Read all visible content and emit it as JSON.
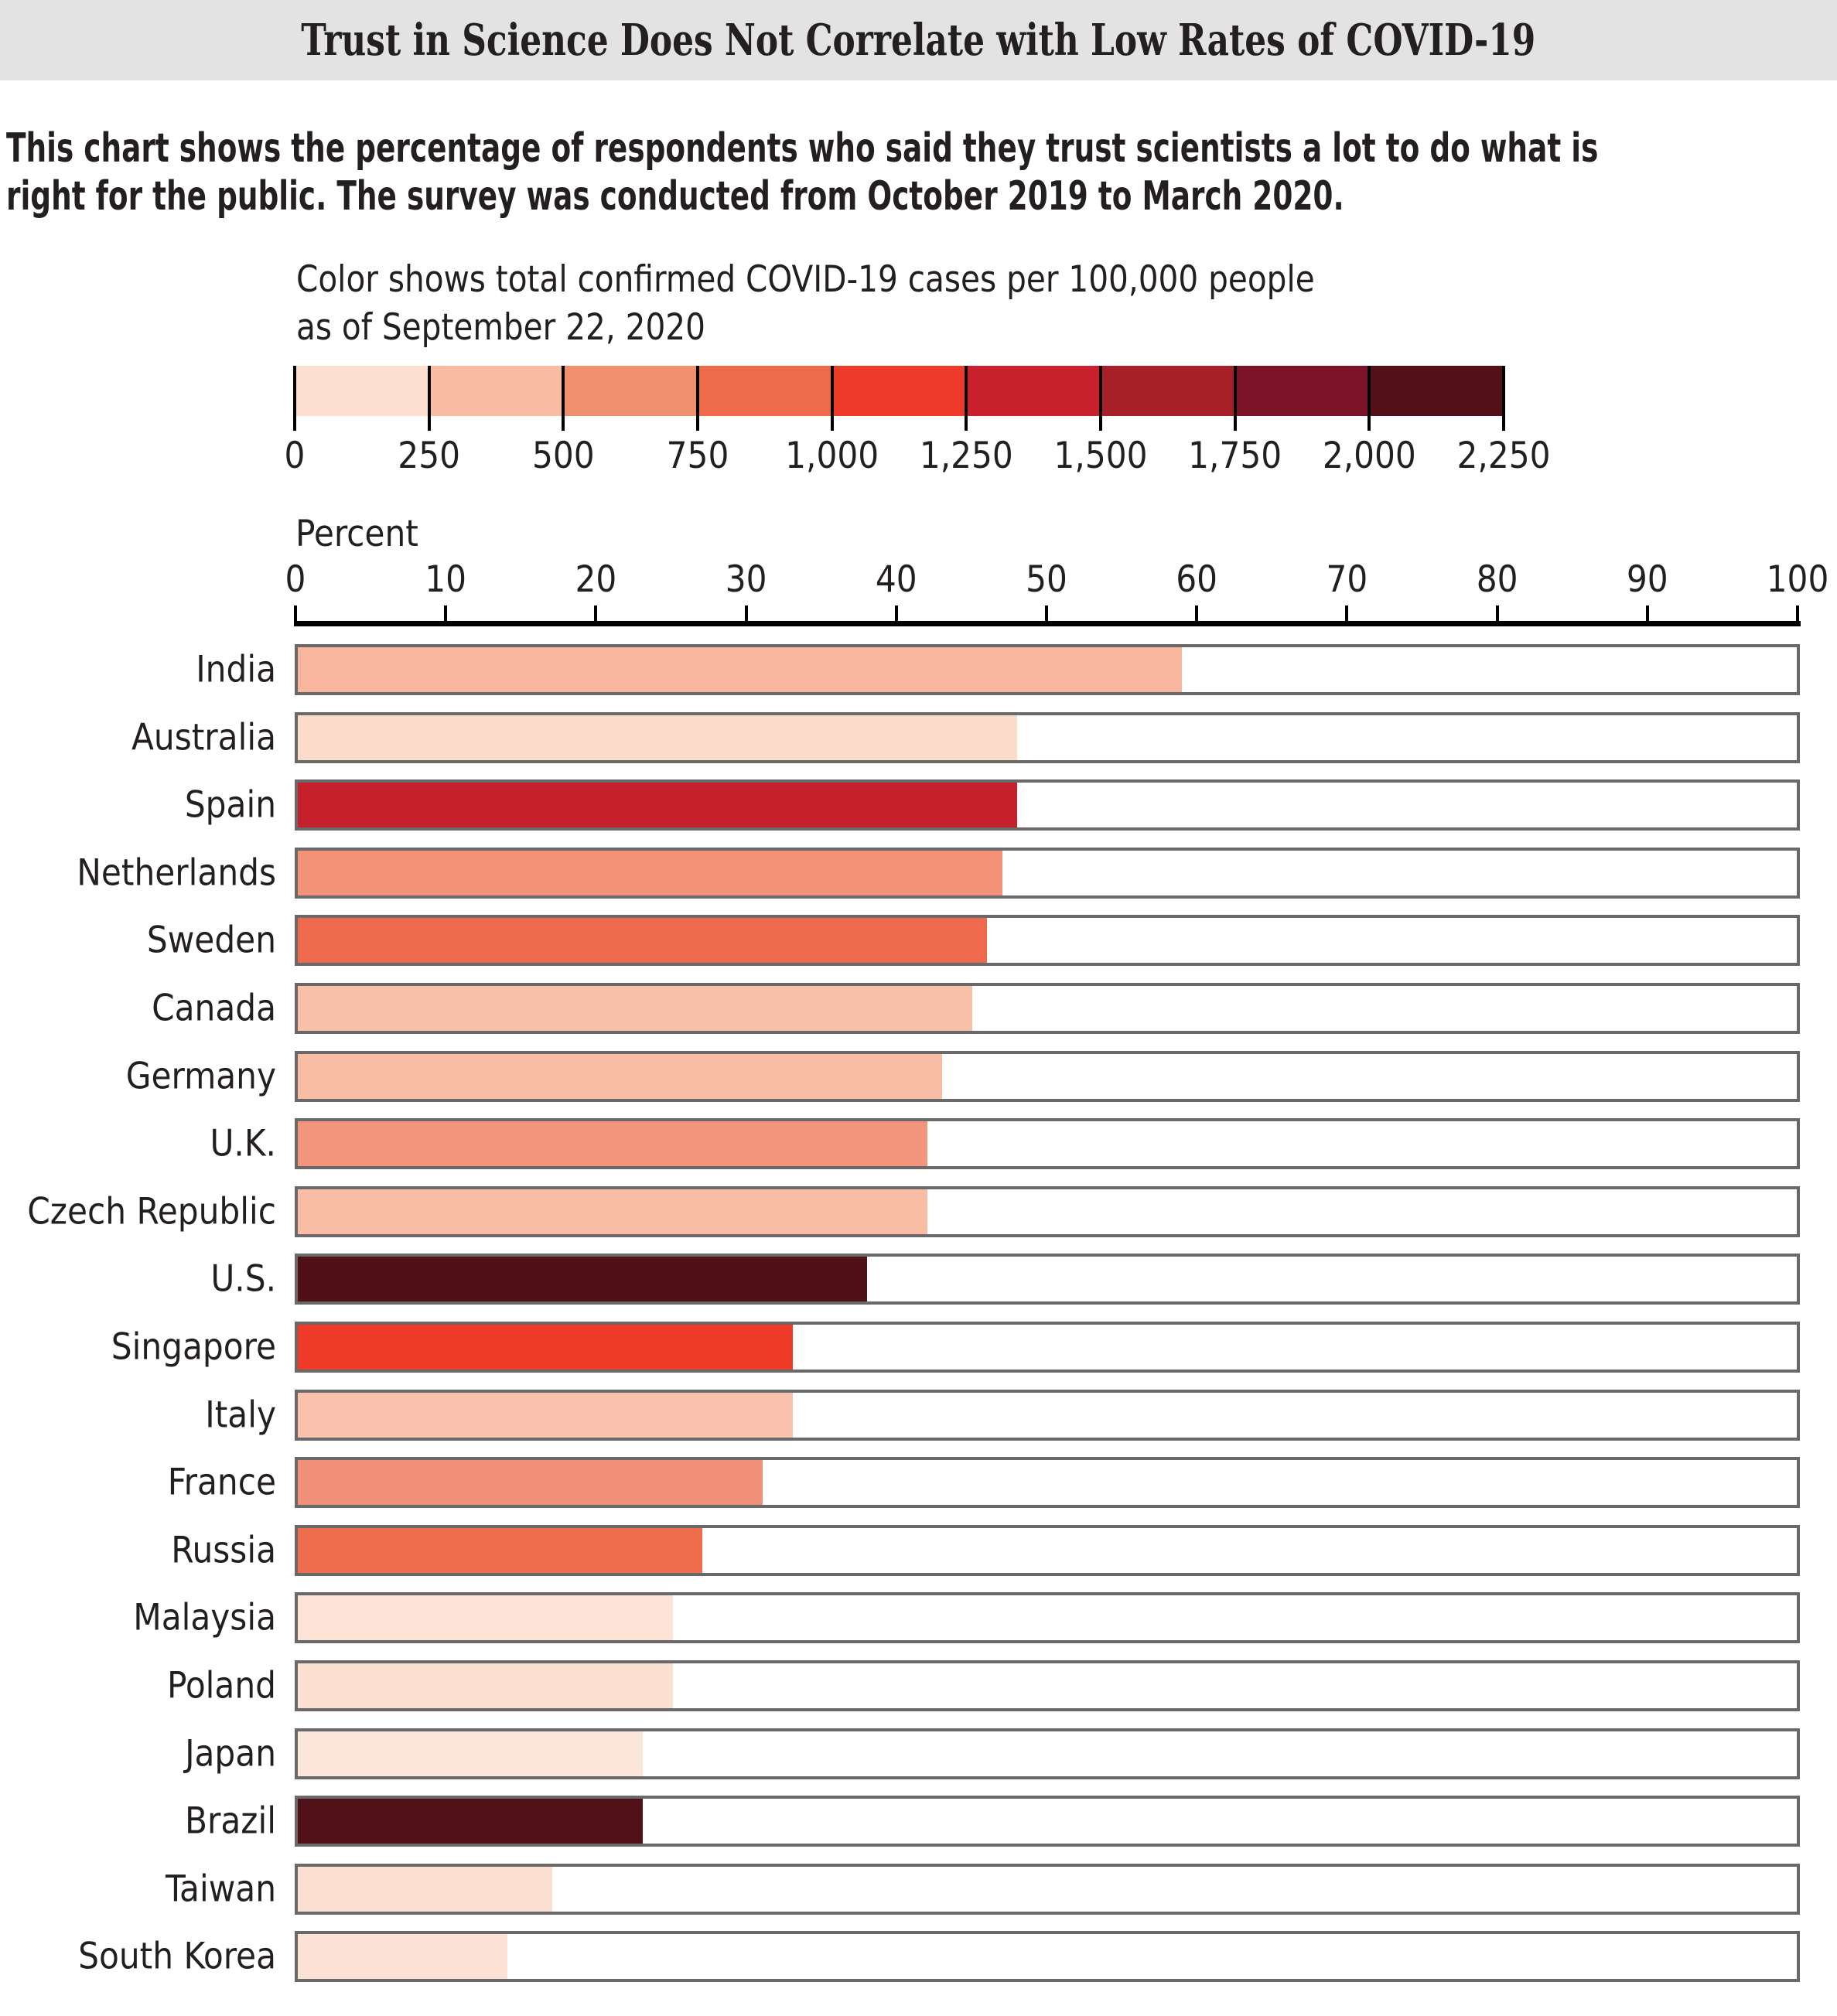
{
  "title": "Trust in Science Does Not Correlate with Low Rates of COVID-19",
  "subtitle_lines": [
    "This chart shows the percentage of respondents who said they trust scientists a lot to do what is",
    "right for the public. The survey was conducted from October 2019 to March 2020."
  ],
  "chart_data": {
    "type": "bar",
    "title": "Trust in Science Does Not Correlate with Low Rates of COVID-19",
    "xlabel": "Percent",
    "xlim": [
      0,
      100
    ],
    "x_ticks": [
      0,
      10,
      20,
      30,
      40,
      50,
      60,
      70,
      80,
      90,
      100
    ],
    "categories": [
      "India",
      "Australia",
      "Spain",
      "Netherlands",
      "Sweden",
      "Canada",
      "Germany",
      "U.K.",
      "Czech Republic",
      "U.S.",
      "Singapore",
      "Italy",
      "France",
      "Russia",
      "Malaysia",
      "Poland",
      "Japan",
      "Brazil",
      "Taiwan",
      "South Korea"
    ],
    "values": [
      59,
      48,
      48,
      47,
      46,
      45,
      43,
      42,
      42,
      38,
      33,
      33,
      31,
      27,
      25,
      25,
      23,
      23,
      17,
      14
    ],
    "bar_colors": [
      "#f7b69d",
      "#fbdbca",
      "#c6202c",
      "#f29279",
      "#ef6a4c",
      "#f9c0a9",
      "#f9bda5",
      "#f3947c",
      "#f9bda6",
      "#4f1018",
      "#ee3b28",
      "#f9c2ac",
      "#f2917a",
      "#ef6c4d",
      "#fce3d5",
      "#fce0d2",
      "#fce5d9",
      "#511119",
      "#fbdfd1",
      "#fce2d4"
    ],
    "colorbar": {
      "title_lines": [
        "Color shows total confirmed COVID-19 cases per 100,000 people",
        "as of September 22, 2020"
      ],
      "tick_labels": [
        "0",
        "250",
        "500",
        "750",
        "1,000",
        "1,250",
        "1,500",
        "1,750",
        "2,000",
        "2,250"
      ],
      "segment_colors": [
        "#fcdfd0",
        "#f9bba1",
        "#f1906e",
        "#ef6a4b",
        "#ee3a28",
        "#c9202d",
        "#a82027",
        "#7c1328",
        "#541019"
      ]
    }
  }
}
